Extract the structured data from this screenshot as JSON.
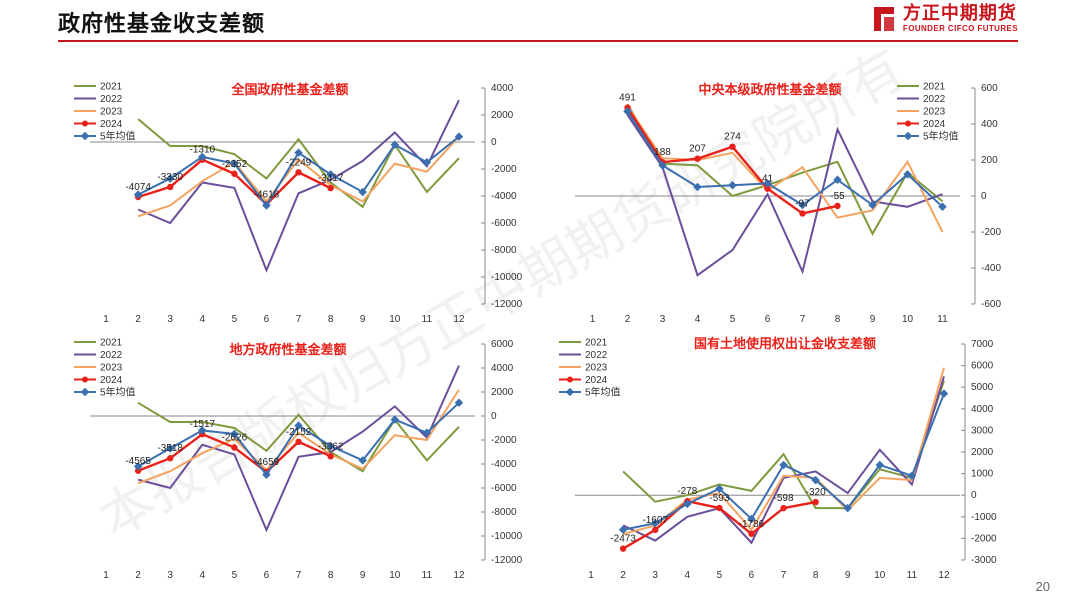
{
  "page": {
    "title": "政府性基金收支差额",
    "page_number": "20",
    "watermark": "本报告版权归方正中期期货研究院所有"
  },
  "logo": {
    "name_cn": "方正中期期货",
    "name_en": "FOUNDER CIFCO FUTURES"
  },
  "colors": {
    "2021": "#7f9a3c",
    "2022": "#6b4f9a",
    "2023": "#f4a460",
    "2024": "#e8211a",
    "avg": "#3a6fb0",
    "brand": "#c8161d"
  },
  "chart_data": [
    {
      "type": "line",
      "title": "全国政府性基金差额",
      "x": [
        1,
        2,
        3,
        4,
        5,
        6,
        7,
        8,
        9,
        10,
        11,
        12
      ],
      "ylim": [
        -12000,
        4000
      ],
      "yticks": [
        4000,
        2000,
        0,
        -2000,
        -4000,
        -6000,
        -8000,
        -10000,
        -12000
      ],
      "series": [
        {
          "name": "2021",
          "values": [
            null,
            1700,
            -300,
            -300,
            -900,
            -2700,
            200,
            -3000,
            -4800,
            -200,
            -3700,
            -1200
          ]
        },
        {
          "name": "2022",
          "values": [
            null,
            -5000,
            -6000,
            -3000,
            -3400,
            -9500,
            -3800,
            -2800,
            -1400,
            700,
            -1800,
            3100
          ]
        },
        {
          "name": "2023",
          "values": [
            null,
            -5500,
            -4700,
            -2900,
            -1500,
            -4400,
            -1300,
            -3200,
            -4400,
            -1600,
            -2200,
            400
          ]
        },
        {
          "name": "2024",
          "values": [
            null,
            -4074,
            -3330,
            -1310,
            -2352,
            -4618,
            -2249,
            -3417,
            null,
            null,
            null,
            null
          ]
        },
        {
          "name": "5年均值",
          "values": [
            null,
            -3900,
            -2700,
            -1100,
            -1600,
            -4700,
            -800,
            -2400,
            -3700,
            -200,
            -1500,
            400
          ]
        }
      ],
      "labels": [
        "-4074",
        "-3330",
        "-1310",
        "-2352",
        "-4618",
        "-2249",
        "-3417"
      ]
    },
    {
      "type": "line",
      "title": "中央本级政府性基金差额",
      "x": [
        1,
        2,
        3,
        4,
        5,
        6,
        7,
        8,
        9,
        10,
        11
      ],
      "ylim": [
        -600,
        600
      ],
      "yticks": [
        600,
        400,
        200,
        0,
        -200,
        -400,
        -600
      ],
      "series": [
        {
          "name": "2021",
          "values": [
            null,
            510,
            180,
            170,
            0,
            60,
            130,
            190,
            -210,
            130,
            -30
          ]
        },
        {
          "name": "2022",
          "values": [
            null,
            450,
            160,
            -440,
            -300,
            10,
            -420,
            370,
            -30,
            -60,
            10
          ]
        },
        {
          "name": "2023",
          "values": [
            null,
            500,
            210,
            200,
            240,
            30,
            160,
            -120,
            -80,
            190,
            -200
          ]
        },
        {
          "name": "2024",
          "values": [
            null,
            491,
            188,
            207,
            274,
            41,
            -97,
            -55,
            null,
            null,
            null
          ]
        },
        {
          "name": "5年均值",
          "values": [
            null,
            470,
            170,
            50,
            60,
            70,
            -50,
            90,
            -50,
            120,
            -60
          ]
        }
      ],
      "labels": [
        "491",
        "188",
        "207",
        "274",
        "41",
        "-97",
        "-55"
      ]
    },
    {
      "type": "line",
      "title": "地方政府性基金差额",
      "x": [
        1,
        2,
        3,
        4,
        5,
        6,
        7,
        8,
        9,
        10,
        11,
        12
      ],
      "ylim": [
        -12000,
        6000
      ],
      "yticks": [
        6000,
        4000,
        2000,
        0,
        -2000,
        -4000,
        -6000,
        -8000,
        -10000,
        -12000
      ],
      "series": [
        {
          "name": "2021",
          "values": [
            null,
            1100,
            -500,
            -500,
            -1000,
            -2900,
            100,
            -3000,
            -4600,
            -300,
            -3700,
            -900
          ]
        },
        {
          "name": "2022",
          "values": [
            null,
            -5300,
            -6000,
            -2400,
            -3200,
            -9500,
            -3400,
            -3000,
            -1300,
            800,
            -1800,
            4200
          ]
        },
        {
          "name": "2023",
          "values": [
            null,
            -5600,
            -4600,
            -3100,
            -1900,
            -4500,
            -1400,
            -3200,
            -4400,
            -1600,
            -2000,
            2200
          ]
        },
        {
          "name": "2024",
          "values": [
            null,
            -4565,
            -3518,
            -1517,
            -2626,
            -4659,
            -2152,
            -3362,
            null,
            null,
            null,
            null
          ]
        },
        {
          "name": "5年均值",
          "values": [
            null,
            -4200,
            -2700,
            -1200,
            -1500,
            -4900,
            -800,
            -2500,
            -3700,
            -300,
            -1400,
            1100
          ]
        }
      ],
      "labels": [
        "-4565",
        "-3518",
        "-1517",
        "-2626",
        "-4659",
        "-2152",
        "-3362"
      ]
    },
    {
      "type": "line",
      "title": "国有土地使用权出让金收支差额",
      "x": [
        1,
        2,
        3,
        4,
        5,
        6,
        7,
        8,
        9,
        10,
        11,
        12
      ],
      "ylim": [
        -3000,
        7000
      ],
      "yticks": [
        7000,
        6000,
        5000,
        4000,
        3000,
        2000,
        1000,
        0,
        -1000,
        -2000,
        -3000
      ],
      "series": [
        {
          "name": "2021",
          "values": [
            null,
            1100,
            -300,
            0,
            500,
            200,
            1900,
            -600,
            -600,
            1200,
            800,
            5300
          ]
        },
        {
          "name": "2022",
          "values": [
            null,
            -1400,
            -2100,
            -1000,
            -600,
            -2200,
            800,
            1100,
            100,
            2100,
            500,
            5500
          ]
        },
        {
          "name": "2023",
          "values": [
            null,
            -1800,
            -1400,
            -200,
            100,
            -1600,
            900,
            800,
            -700,
            800,
            700,
            5900
          ]
        },
        {
          "name": "2024",
          "values": [
            null,
            -2473,
            -1607,
            -278,
            -593,
            -1786,
            -598,
            -320,
            null,
            null,
            null,
            null
          ]
        },
        {
          "name": "5年均值",
          "values": [
            null,
            -1600,
            -1300,
            -400,
            300,
            -1100,
            1400,
            700,
            -600,
            1400,
            900,
            4700
          ]
        }
      ],
      "labels": [
        "-2473",
        "-1607",
        "-278",
        "-593",
        "-1786",
        "-598",
        "-320"
      ]
    }
  ]
}
